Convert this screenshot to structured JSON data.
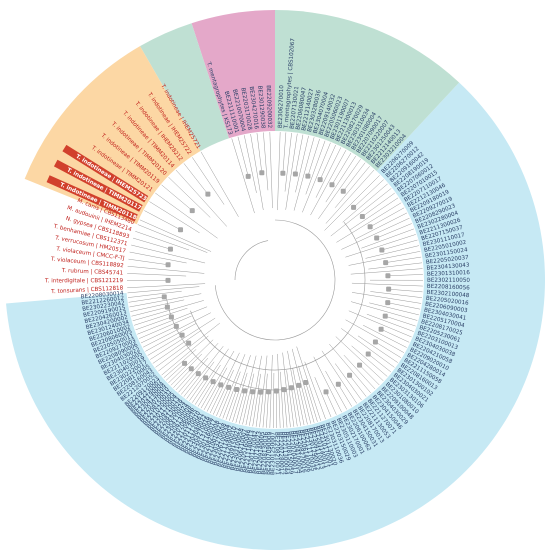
{
  "colors": {
    "blue_clade": "#c6e9f4",
    "green_clade": "#bfe0d3",
    "pink_clade": "#e4a8c9",
    "orange_clade": "#fcd7a4",
    "branch": "#9a9a9a",
    "node": "#a6a6a6",
    "leaf_text": "#2a3f66",
    "ref_text": "#c0201c",
    "highlight_bg": "#d1402c",
    "highlight_text": "#ffffff"
  },
  "icons": [
    "node-marker-icon"
  ],
  "tree": {
    "root_label": "",
    "right_clade_labels": [
      "BE2206270009",
      "BE2206270012",
      "BE2209160042",
      "BE2208190019",
      "BE2207060012",
      "BE2207010015",
      "BE2207110017",
      "BE2212130046",
      "BE2209180019",
      "BE2209270019",
      "BE2208290023",
      "BE2302280004",
      "BE2211300026",
      "BE2207150037",
      "BE2301110017",
      "BE2205010002",
      "BE2301150024",
      "BE2205020037",
      "BE2304130043",
      "BE2301310016",
      "BE2302110050",
      "BE2208160056",
      "BE2302100048",
      "BE2205020016",
      "BE2206090003",
      "BE2304030041",
      "BE2205170004",
      "BE2208170025",
      "BE2205230061",
      "BE2203100013",
      "BE2304030038",
      "BE2204210058",
      "BE2209020010",
      "BE2204280014",
      "BE2211150058",
      "BE2208160013",
      "BE2301300102",
      "BE2304030021",
      "BE2303130106",
      "BE2301080010",
      "BE2209100048",
      "BE2304030029",
      "BE2304150046",
      "BE2211270071",
      "BE2211130053",
      "BE2208170013",
      "BE2304150031",
      "BE2206100062",
      "BE2302170001",
      "BE2305110003",
      "BE2203150029",
      "BE2303110036"
    ],
    "bottom_clade_labels": [
      "BE2301130020",
      "BE2210170001",
      "BE2203140011",
      "BE2304110013",
      "BE2301290012",
      "BE2211170035",
      "BE2206140006",
      "BE2208270016",
      "BE2304100004",
      "BE2207040017",
      "BE2208150059",
      "BE2211300044",
      "BE2207280012",
      "BE2208210071",
      "BE2301250007",
      "BE2207090009",
      "BE2208130036",
      "BE2209140005",
      "BE2207190023",
      "BE2301270042",
      "BE2211180013",
      "BE2205160046",
      "BE2206210007",
      "BE2303100058",
      "BE2209150021",
      "BE2212090010",
      "BE2211140002",
      "BE2206100034",
      "BE2303270008",
      "BE2210010021",
      "BE2208250008",
      "BE2301160017",
      "BE2301310008",
      "BE2304270016",
      "BE2304040022",
      "BE2211120061",
      "BE2301170010",
      "BE2212090035",
      "BE2207060046",
      "BE2206130008",
      "BE2304110024",
      "BE2206300024",
      "BE2208130028",
      "BE2209210013",
      "BE2301130004",
      "BE2210200005",
      "BE2208150031",
      "BE2203070010",
      "BE2304130009",
      "BE2302190004",
      "BE2212230007",
      "BE2209170023"
    ],
    "left_clade_labels": [
      "BE2212070052",
      "BE2208160043",
      "BE2208170005",
      "BE2302220017",
      "BE2304030019",
      "BE2211020005",
      "BE2304030022",
      "BE2208090006",
      "BE2209270003",
      "BE2205050011",
      "BE2208060005",
      "BE2206010002",
      "BE2301240034",
      "BE2304200002",
      "BE2204260013",
      "BE2209190015",
      "BE2302230042",
      "BE2212260012",
      "BE2208030014"
    ],
    "reference_labels": [
      "T. tonsurans | CBS112818",
      "T. interdigitale | CBS121219",
      "T. rubrum | CBS45741",
      "T. violaceum | CBS118892",
      "T. violaceum | CMCC-F-TJ",
      "T. verrucosum | HM20517",
      "T. benhamiae | CBS112371",
      "N. gypsea | CBS118893",
      "M. audouinii | IHEM2214",
      "M. canis | CBS113480"
    ],
    "indotineae_labels": [
      "T. indotineae | TIMM20118",
      "T. indotineae | TIMM20117",
      "T. indotineae | IHEM25723",
      "T. indotineae | TIMM20121",
      "T. indotineae | TIMM20119",
      "T. indotineae | TIMM20120",
      "T. indotineae | TIMM20114",
      "T. indotineae | IHEM28212",
      "T. indotineae | IHEM25722",
      "T. indotineae | IHEM25721"
    ],
    "pink_clade_labels": [
      "T. mentagrophytes | KS173",
      "BE2211110001",
      "BE2210070004",
      "BE2203170028",
      "BE2304270016",
      "BE2301290038",
      "BE2209200032"
    ],
    "green_clade_labels": [
      "BE2306270010",
      "T. mentagrophytes | CBS102067",
      "BE2207130021",
      "BE2206080047",
      "BE2212140027",
      "BE2303280036",
      "BE2304070004",
      "BE2209140032",
      "BE2205060023",
      "BE2301190007",
      "BE2211300013",
      "BE2208270029",
      "BE2303310034",
      "BE2301080004",
      "BE2207090017",
      "BE2210220007",
      "BE2301250043",
      "BE2212140013",
      "BE2303210004"
    ],
    "highlight_labels": [
      "T. interdigitale | H0616",
      "T. indotineae | TIMM20118",
      "T. indotineae | IHEM25723",
      "T. indotineae | TIMM20117",
      "T. mentagrophytes | D15P127"
    ]
  }
}
